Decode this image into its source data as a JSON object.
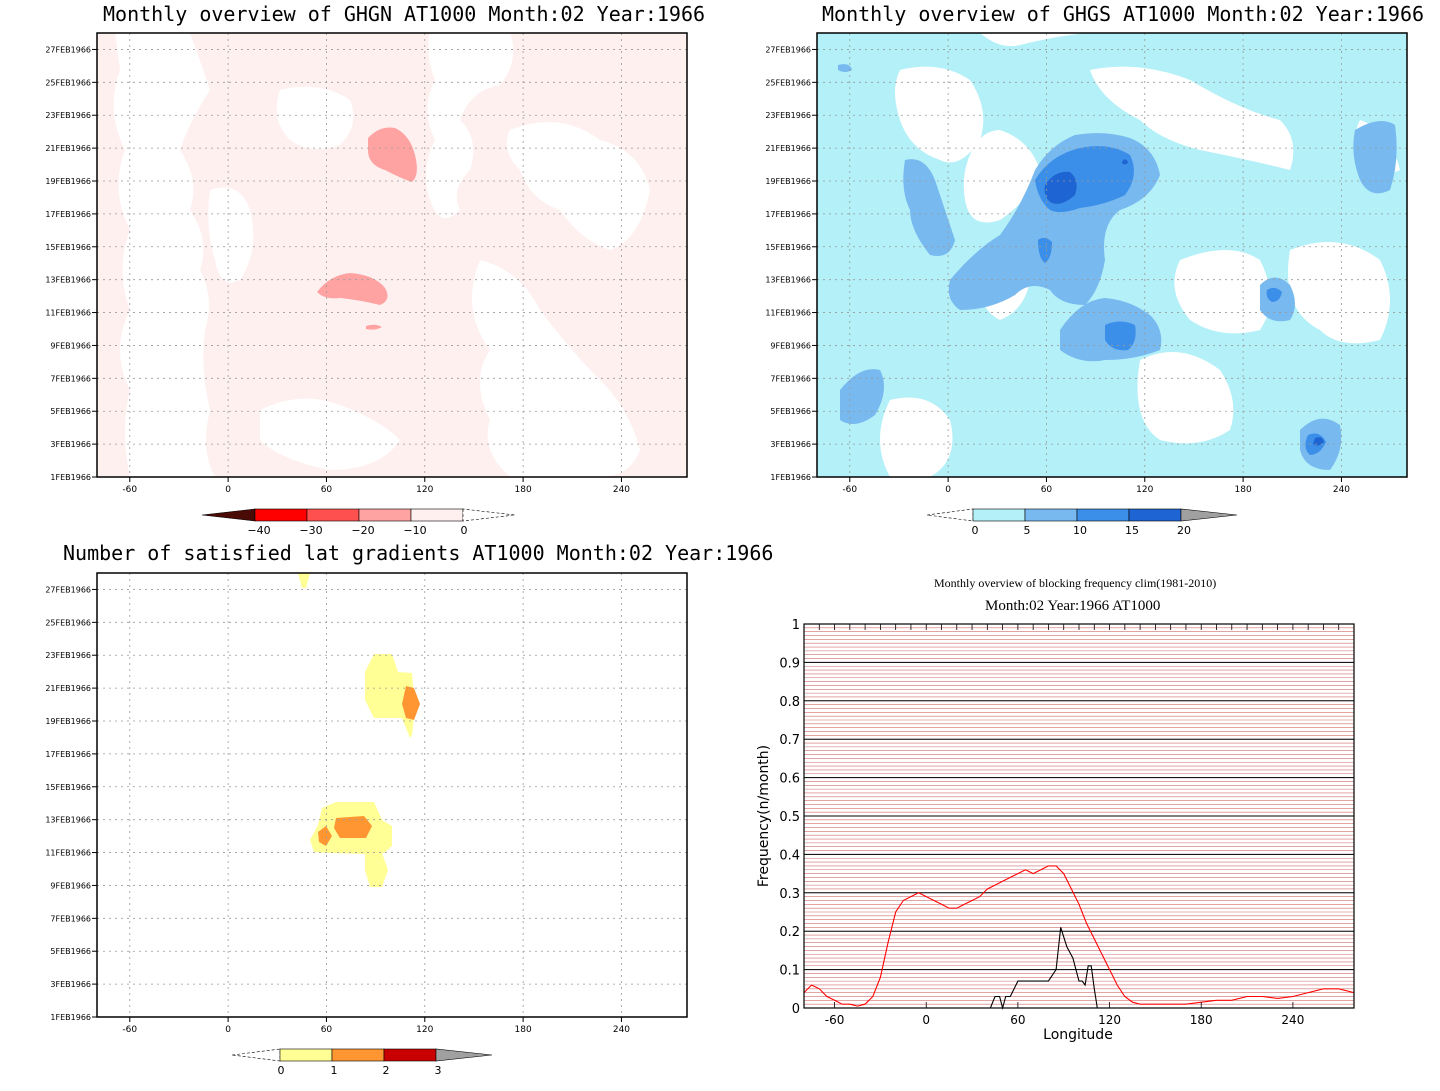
{
  "colors": {
    "ghgn_levels": [
      "#4a0a05",
      "#ff0000",
      "#ff5050",
      "#ffa2a2",
      "#fff0f0"
    ],
    "ghgs_levels": [
      "#b3f0f8",
      "#78b9f0",
      "#3c8fe8",
      "#1e64d2",
      "#a0a0a0"
    ],
    "grad_levels": [
      "#ffff96",
      "#ff9632",
      "#c80000",
      "#a0a0a0"
    ],
    "freq_line": "#ff0000",
    "clim_line": "#000000",
    "red_grid": "#d26e6e"
  },
  "panels": {
    "ghgn": {
      "title": "Monthly overview of GHGN AT1000 Month:02 Year:1966",
      "colorbar_labels": [
        "−40",
        "−30",
        "−20",
        "−10",
        "0"
      ]
    },
    "ghgs": {
      "title": "Monthly overview of GHGS AT1000 Month:02 Year:1966",
      "colorbar_labels": [
        "0",
        "5",
        "10",
        "15",
        "20"
      ]
    },
    "grad": {
      "title": "Number of satisfied lat gradients AT1000 Month:02 Year:1966",
      "colorbar_labels": [
        "0",
        "1",
        "2",
        "3"
      ]
    },
    "freq": {
      "title": "Monthly overview of blocking frequency clim(1981-2010)",
      "subtitle": "Month:02 Year:1966  AT1000"
    }
  },
  "hovmoller_axes": {
    "x_ticks": [
      "-60",
      "0",
      "60",
      "120",
      "180",
      "240"
    ],
    "y_ticks": [
      "1FEB1966",
      "3FEB1966",
      "5FEB1966",
      "7FEB1966",
      "9FEB1966",
      "11FEB1966",
      "13FEB1966",
      "15FEB1966",
      "17FEB1966",
      "19FEB1966",
      "21FEB1966",
      "23FEB1966",
      "25FEB1966",
      "27FEB1966"
    ]
  },
  "chart_data": [
    {
      "type": "heatmap",
      "title": "Monthly overview of GHGN AT1000 Month:02 Year:1966",
      "x_range": [
        -80,
        280
      ],
      "y_range": [
        "1FEB1966",
        "28FEB1966"
      ],
      "levels": [
        -40,
        -30,
        -20,
        -10,
        0
      ],
      "features": [
        {
          "level_range": [
            -20,
            -10
          ],
          "lon": [
            85,
            115
          ],
          "date": "20FEB1966"
        },
        {
          "level_range": [
            -20,
            -10
          ],
          "lon": [
            52,
            98
          ],
          "date": "12FEB1966"
        }
      ]
    },
    {
      "type": "heatmap",
      "title": "Monthly overview of GHGS AT1000 Month:02 Year:1966",
      "x_range": [
        -80,
        280
      ],
      "y_range": [
        "1FEB1966",
        "28FEB1966"
      ],
      "levels": [
        0,
        5,
        10,
        15,
        20
      ],
      "features": [
        {
          "level_range": [
            15,
            20
          ],
          "lon": [
            50,
            110
          ],
          "date": "19FEB1966"
        },
        {
          "level_range": [
            10,
            15
          ],
          "lon": [
            90,
            115
          ],
          "date": "10FEB1966"
        },
        {
          "level_range": [
            10,
            15
          ],
          "lon": [
            218,
            230
          ],
          "date": "3FEB1966"
        },
        {
          "level_range": [
            10,
            15
          ],
          "lon": [
            190,
            205
          ],
          "date": "12FEB1966"
        }
      ]
    },
    {
      "type": "heatmap",
      "title": "Number of satisfied lat gradients AT1000 Month:02 Year:1966",
      "x_range": [
        -80,
        280
      ],
      "y_range": [
        "1FEB1966",
        "28FEB1966"
      ],
      "levels": [
        0,
        1,
        2,
        3
      ],
      "features": [
        {
          "level_range": [
            0,
            1
          ],
          "lon": [
            90,
            120
          ],
          "date": "20FEB1966"
        },
        {
          "level_range": [
            1,
            2
          ],
          "lon": [
            107,
            117
          ],
          "date": "20FEB1966"
        },
        {
          "level_range": [
            0,
            1
          ],
          "lon": [
            50,
            100
          ],
          "date": "12FEB1966"
        },
        {
          "level_range": [
            1,
            2
          ],
          "lon": [
            70,
            88
          ],
          "date": "13FEB1966"
        },
        {
          "level_range": [
            1,
            2
          ],
          "lon": [
            55,
            65
          ],
          "date": "12FEB1966"
        },
        {
          "level_range": [
            0,
            1
          ],
          "lon": [
            45,
            52
          ],
          "date": "28FEB1966"
        }
      ]
    },
    {
      "type": "line",
      "title": "Monthly overview of blocking frequency clim(1981-2010)",
      "subtitle": "Month:02 Year:1966  AT1000",
      "xlabel": "Longitude",
      "ylabel": "Frequency(n/month)",
      "xlim": [
        -80,
        280
      ],
      "ylim": [
        0,
        1
      ],
      "x_ticks": [
        "-60",
        "0",
        "60",
        "120",
        "180",
        "240"
      ],
      "y_ticks": [
        "0",
        "0.1",
        "0.2",
        "0.3",
        "0.4",
        "0.5",
        "0.6",
        "0.7",
        "0.8",
        "0.9",
        "1"
      ],
      "series": [
        {
          "x": [
            -80,
            -75,
            -70,
            -65,
            -60,
            -55,
            -50,
            -45,
            -40,
            -35,
            -30,
            -25,
            -20,
            -15,
            -10,
            -5,
            0,
            5,
            10,
            15,
            20,
            25,
            30,
            35,
            40,
            45,
            50,
            55,
            60,
            65,
            70,
            75,
            80,
            85,
            90,
            95,
            100,
            105,
            110,
            115,
            120,
            125,
            130,
            135,
            140,
            145,
            150,
            160,
            170,
            180,
            190,
            200,
            210,
            220,
            230,
            240,
            250,
            260,
            270,
            280
          ],
          "y": [
            0.04,
            0.06,
            0.05,
            0.03,
            0.02,
            0.01,
            0.01,
            0.005,
            0.01,
            0.03,
            0.08,
            0.17,
            0.25,
            0.28,
            0.29,
            0.3,
            0.29,
            0.28,
            0.27,
            0.26,
            0.26,
            0.27,
            0.28,
            0.29,
            0.31,
            0.32,
            0.33,
            0.34,
            0.35,
            0.36,
            0.35,
            0.36,
            0.37,
            0.37,
            0.35,
            0.31,
            0.27,
            0.22,
            0.18,
            0.14,
            0.1,
            0.06,
            0.03,
            0.015,
            0.01,
            0.01,
            0.01,
            0.01,
            0.01,
            0.015,
            0.02,
            0.02,
            0.03,
            0.03,
            0.025,
            0.03,
            0.04,
            0.05,
            0.05,
            0.04
          ]
        },
        {
          "x": [
            -80,
            40,
            42,
            45,
            48,
            50,
            52,
            55,
            60,
            65,
            70,
            75,
            80,
            85,
            88,
            92,
            96,
            100,
            102,
            104,
            106,
            108,
            110,
            112,
            114,
            280
          ],
          "y": [
            0,
            0,
            0,
            0.03,
            0.03,
            0,
            0.03,
            0.03,
            0.07,
            0.07,
            0.07,
            0.07,
            0.07,
            0.1,
            0.21,
            0.16,
            0.13,
            0.07,
            0.07,
            0.06,
            0.11,
            0.11,
            0.05,
            0,
            0,
            0
          ]
        }
      ]
    }
  ]
}
